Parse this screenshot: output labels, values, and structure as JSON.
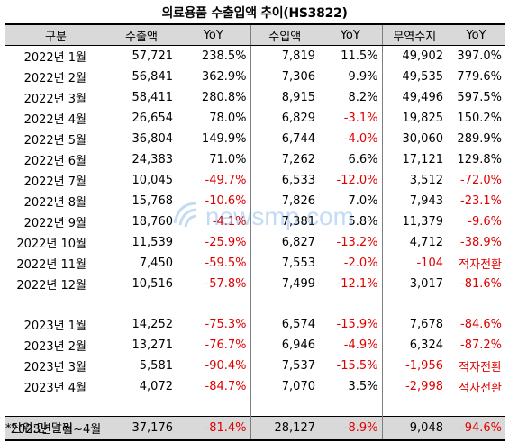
{
  "title": "의료용품 수출입액 추이(HS3822)",
  "headers": [
    "구분",
    "수출액",
    "YoY",
    "수입액",
    "YoY",
    "무역수지",
    "YoY"
  ],
  "rows_2022": [
    [
      "2022년 1월",
      "57,721",
      "238.5%",
      "7,819",
      "11.5%",
      "49,902",
      "397.0%"
    ],
    [
      "2022년 2월",
      "56,841",
      "362.9%",
      "7,306",
      "9.9%",
      "49,535",
      "779.6%"
    ],
    [
      "2022년 3월",
      "58,411",
      "280.8%",
      "8,915",
      "8.2%",
      "49,496",
      "597.5%"
    ],
    [
      "2022년 4월",
      "26,654",
      "78.0%",
      "6,829",
      "-3.1%",
      "19,825",
      "150.2%"
    ],
    [
      "2022년 5월",
      "36,804",
      "149.9%",
      "6,744",
      "-4.0%",
      "30,060",
      "289.9%"
    ],
    [
      "2022년 6월",
      "24,383",
      "71.0%",
      "7,262",
      "6.6%",
      "17,121",
      "129.8%"
    ],
    [
      "2022년 7월",
      "10,045",
      "-49.7%",
      "6,533",
      "-12.0%",
      "3,512",
      "-72.0%"
    ],
    [
      "2022년 8월",
      "15,768",
      "-10.6%",
      "7,826",
      "7.0%",
      "7,943",
      "-23.1%"
    ],
    [
      "2022년 9월",
      "18,760",
      "-4.1%",
      "7,381",
      "5.8%",
      "11,379",
      "-9.6%"
    ],
    [
      "2022년 10월",
      "11,539",
      "-25.9%",
      "6,827",
      "-13.2%",
      "4,712",
      "-38.9%"
    ],
    [
      "2022년 11월",
      "7,450",
      "-59.5%",
      "7,553",
      "-2.0%",
      "-104",
      "적자전환"
    ],
    [
      "2022년 12월",
      "10,516",
      "-57.8%",
      "7,499",
      "-12.1%",
      "3,017",
      "-81.6%"
    ]
  ],
  "rows_2023": [
    [
      "2023년 1월",
      "14,252",
      "-75.3%",
      "6,574",
      "-15.9%",
      "7,678",
      "-84.6%"
    ],
    [
      "2023년 2월",
      "13,271",
      "-76.7%",
      "6,946",
      "-4.9%",
      "6,324",
      "-87.2%"
    ],
    [
      "2023년 3월",
      "5,581",
      "-90.4%",
      "7,537",
      "-15.5%",
      "-1,956",
      "적자전환"
    ],
    [
      "2023년 4월",
      "4,072",
      "-84.7%",
      "7,070",
      "3.5%",
      "-2,998",
      "적자전환"
    ]
  ],
  "total": [
    "2023년 1월~4월",
    "37,176",
    "-81.4%",
    "28,127",
    "-8.9%",
    "9,048",
    "-94.6%"
  ],
  "note": "*단위:만 달러",
  "watermark": "newsmp.com",
  "colors": {
    "negative": "#e00000",
    "header_bg": "#d9d9d9"
  }
}
